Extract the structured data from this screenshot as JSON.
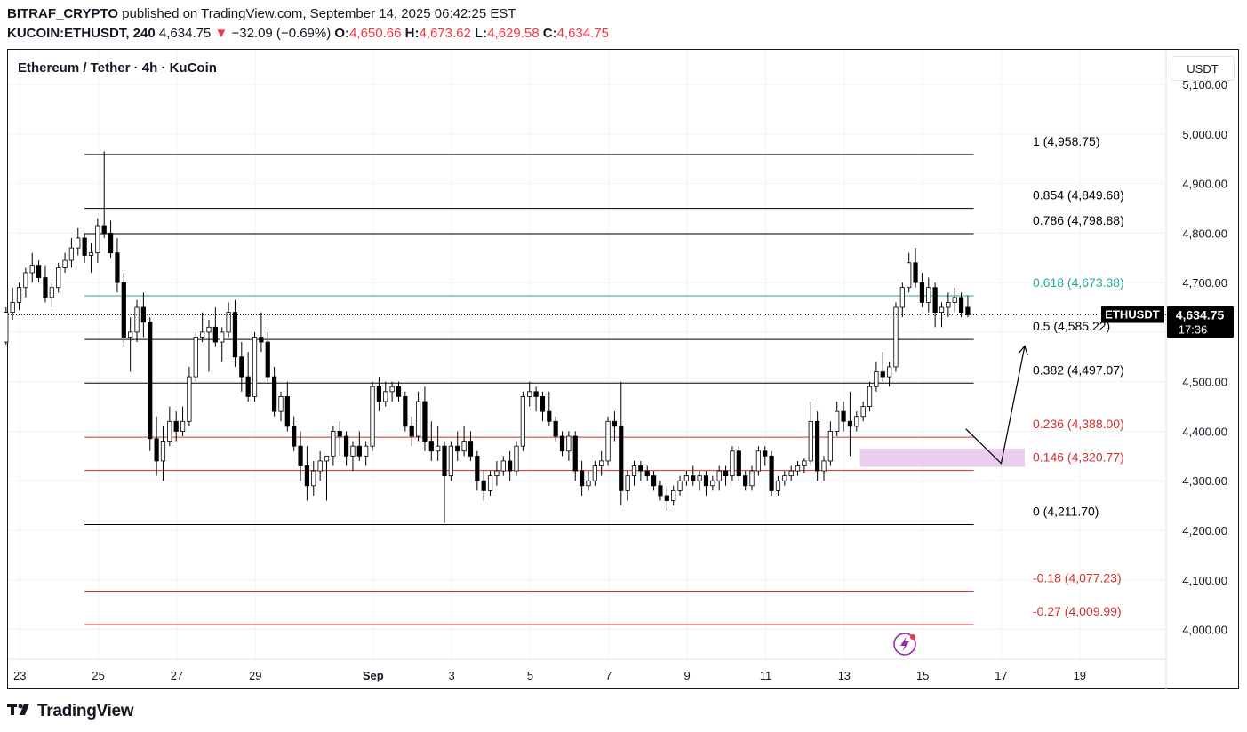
{
  "header": {
    "author": "BITRAF_CRYPTO",
    "published_text": "published on TradingView.com, September 14, 2025 06:42:25 EST",
    "symbol": "KUCOIN:ETHUSDT, 240",
    "last": "4,634.75",
    "change_arrow": "▼",
    "change": "−32.09 (−0.69%)",
    "o_label": "O:",
    "o": "4,650.66",
    "h_label": "H:",
    "h": "4,673.62",
    "l_label": "L:",
    "l": "4,629.58",
    "c_label": "C:",
    "c": "4,634.75"
  },
  "chart_title": "Ethereum / Tether · 4h · KuCoin",
  "currency_button": "USDT",
  "price_tag": {
    "symbol": "ETHUSDT",
    "price": "4,634.75",
    "countdown": "17:36"
  },
  "footer": {
    "brand": "TradingView"
  },
  "colors": {
    "up": "#ffffff",
    "down": "#000000",
    "fib_black": "#000000",
    "fib_red": "#d32f2f",
    "fib_teal": "#22ab94",
    "zone": "#e1bee7",
    "axis_text": "#131722"
  },
  "chart_data": {
    "type": "candlestick",
    "ylim": [
      3940,
      5170
    ],
    "y_ticks": [
      "4,000.00",
      "4,100.00",
      "4,200.00",
      "4,300.00",
      "4,400.00",
      "4,500.00",
      "4,600.00",
      "4,700.00",
      "4,800.00",
      "4,900.00",
      "5,000.00",
      "5,100.00"
    ],
    "y_tick_values": [
      4000,
      4100,
      4200,
      4300,
      4400,
      4500,
      4600,
      4700,
      4800,
      4900,
      5000,
      5100
    ],
    "x_ticks": [
      "23",
      "25",
      "27",
      "29",
      "Sep",
      "3",
      "5",
      "7",
      "9",
      "11",
      "13",
      "15",
      "17",
      "19"
    ],
    "x_tick_days": [
      -9,
      -7,
      -5,
      -3,
      0,
      2,
      4,
      6,
      8,
      10,
      12,
      14,
      16,
      18
    ],
    "x_range_days": [
      -9.3,
      20.2
    ],
    "fib_levels": [
      {
        "ratio": "1",
        "value": 4958.75,
        "label": "4,958.75",
        "color": "#000000"
      },
      {
        "ratio": "0.854",
        "value": 4849.68,
        "label": "4,849.68",
        "color": "#000000"
      },
      {
        "ratio": "0.786",
        "value": 4798.88,
        "label": "4,798.88",
        "color": "#000000"
      },
      {
        "ratio": "0.618",
        "value": 4673.38,
        "label": "4,673.38",
        "color": "#22ab94"
      },
      {
        "ratio": "0.5",
        "value": 4585.22,
        "label": "4,585.22",
        "color": "#000000"
      },
      {
        "ratio": "0.382",
        "value": 4497.07,
        "label": "4,497.07",
        "color": "#000000"
      },
      {
        "ratio": "0.236",
        "value": 4388.0,
        "label": "4,388.00",
        "color": "#d32f2f"
      },
      {
        "ratio": "0.146",
        "value": 4320.77,
        "label": "4,320.77",
        "color": "#d32f2f"
      },
      {
        "ratio": "0",
        "value": 4211.7,
        "label": "4,211.70",
        "color": "#000000"
      },
      {
        "ratio": "-0.18",
        "value": 4077.23,
        "label": "4,077.23",
        "color": "#d32f2f"
      },
      {
        "ratio": "-0.27",
        "value": 4009.99,
        "label": "4,009.99",
        "color": "#d32f2f"
      }
    ],
    "fib_x_range_days": [
      -7.35,
      15.3
    ],
    "zone": {
      "x0": 12.4,
      "x1": 16.6,
      "y0": 4328,
      "y1": 4365
    },
    "projection": [
      {
        "x": 15.1,
        "y": 4405
      },
      {
        "x": 16.0,
        "y": 4335
      },
      {
        "x": 16.6,
        "y": 4572
      }
    ],
    "current_price": 4634.75,
    "candles_4h": [
      {
        "o": 4580,
        "h": 4650,
        "l": 4575,
        "c": 4640
      },
      {
        "o": 4640,
        "h": 4690,
        "l": 4625,
        "c": 4660
      },
      {
        "o": 4660,
        "h": 4700,
        "l": 4645,
        "c": 4690
      },
      {
        "o": 4690,
        "h": 4730,
        "l": 4670,
        "c": 4720
      },
      {
        "o": 4720,
        "h": 4760,
        "l": 4700,
        "c": 4735
      },
      {
        "o": 4735,
        "h": 4745,
        "l": 4700,
        "c": 4710
      },
      {
        "o": 4710,
        "h": 4735,
        "l": 4660,
        "c": 4670
      },
      {
        "o": 4670,
        "h": 4700,
        "l": 4650,
        "c": 4690
      },
      {
        "o": 4690,
        "h": 4740,
        "l": 4680,
        "c": 4730
      },
      {
        "o": 4730,
        "h": 4760,
        "l": 4720,
        "c": 4745
      },
      {
        "o": 4745,
        "h": 4790,
        "l": 4730,
        "c": 4770
      },
      {
        "o": 4770,
        "h": 4810,
        "l": 4755,
        "c": 4790
      },
      {
        "o": 4790,
        "h": 4800,
        "l": 4740,
        "c": 4755
      },
      {
        "o": 4755,
        "h": 4780,
        "l": 4720,
        "c": 4760
      },
      {
        "o": 4760,
        "h": 4830,
        "l": 4740,
        "c": 4815
      },
      {
        "o": 4815,
        "h": 4965,
        "l": 4790,
        "c": 4800
      },
      {
        "o": 4800,
        "h": 4825,
        "l": 4750,
        "c": 4760
      },
      {
        "o": 4760,
        "h": 4790,
        "l": 4680,
        "c": 4700
      },
      {
        "o": 4700,
        "h": 4720,
        "l": 4570,
        "c": 4590
      },
      {
        "o": 4590,
        "h": 4630,
        "l": 4520,
        "c": 4600
      },
      {
        "o": 4600,
        "h": 4665,
        "l": 4580,
        "c": 4650
      },
      {
        "o": 4650,
        "h": 4680,
        "l": 4590,
        "c": 4620
      },
      {
        "o": 4620,
        "h": 4630,
        "l": 4360,
        "c": 4385
      },
      {
        "o": 4385,
        "h": 4430,
        "l": 4310,
        "c": 4340
      },
      {
        "o": 4340,
        "h": 4410,
        "l": 4300,
        "c": 4380
      },
      {
        "o": 4380,
        "h": 4450,
        "l": 4370,
        "c": 4420
      },
      {
        "o": 4420,
        "h": 4440,
        "l": 4380,
        "c": 4400
      },
      {
        "o": 4400,
        "h": 4450,
        "l": 4390,
        "c": 4420
      },
      {
        "o": 4420,
        "h": 4530,
        "l": 4410,
        "c": 4510
      },
      {
        "o": 4510,
        "h": 4600,
        "l": 4500,
        "c": 4590
      },
      {
        "o": 4590,
        "h": 4640,
        "l": 4580,
        "c": 4600
      },
      {
        "o": 4600,
        "h": 4625,
        "l": 4520,
        "c": 4610
      },
      {
        "o": 4610,
        "h": 4650,
        "l": 4570,
        "c": 4580
      },
      {
        "o": 4580,
        "h": 4610,
        "l": 4540,
        "c": 4600
      },
      {
        "o": 4600,
        "h": 4660,
        "l": 4590,
        "c": 4640
      },
      {
        "o": 4640,
        "h": 4665,
        "l": 4530,
        "c": 4550
      },
      {
        "o": 4550,
        "h": 4580,
        "l": 4480,
        "c": 4510
      },
      {
        "o": 4510,
        "h": 4560,
        "l": 4460,
        "c": 4470
      },
      {
        "o": 4470,
        "h": 4600,
        "l": 4460,
        "c": 4590
      },
      {
        "o": 4590,
        "h": 4640,
        "l": 4560,
        "c": 4580
      },
      {
        "o": 4580,
        "h": 4600,
        "l": 4500,
        "c": 4510
      },
      {
        "o": 4510,
        "h": 4530,
        "l": 4430,
        "c": 4440
      },
      {
        "o": 4440,
        "h": 4480,
        "l": 4420,
        "c": 4470
      },
      {
        "o": 4470,
        "h": 4500,
        "l": 4400,
        "c": 4410
      },
      {
        "o": 4410,
        "h": 4430,
        "l": 4360,
        "c": 4370
      },
      {
        "o": 4370,
        "h": 4400,
        "l": 4300,
        "c": 4330
      },
      {
        "o": 4330,
        "h": 4370,
        "l": 4260,
        "c": 4290
      },
      {
        "o": 4290,
        "h": 4340,
        "l": 4270,
        "c": 4320
      },
      {
        "o": 4320,
        "h": 4360,
        "l": 4300,
        "c": 4340
      },
      {
        "o": 4340,
        "h": 4350,
        "l": 4260,
        "c": 4350
      },
      {
        "o": 4350,
        "h": 4410,
        "l": 4330,
        "c": 4400
      },
      {
        "o": 4400,
        "h": 4420,
        "l": 4350,
        "c": 4390
      },
      {
        "o": 4390,
        "h": 4400,
        "l": 4330,
        "c": 4350
      },
      {
        "o": 4350,
        "h": 4380,
        "l": 4320,
        "c": 4370
      },
      {
        "o": 4370,
        "h": 4400,
        "l": 4340,
        "c": 4350
      },
      {
        "o": 4350,
        "h": 4380,
        "l": 4330,
        "c": 4370
      },
      {
        "o": 4370,
        "h": 4500,
        "l": 4360,
        "c": 4490
      },
      {
        "o": 4490,
        "h": 4510,
        "l": 4440,
        "c": 4460
      },
      {
        "o": 4460,
        "h": 4500,
        "l": 4450,
        "c": 4480
      },
      {
        "o": 4480,
        "h": 4500,
        "l": 4460,
        "c": 4490
      },
      {
        "o": 4490,
        "h": 4500,
        "l": 4460,
        "c": 4470
      },
      {
        "o": 4470,
        "h": 4480,
        "l": 4400,
        "c": 4410
      },
      {
        "o": 4410,
        "h": 4430,
        "l": 4370,
        "c": 4390
      },
      {
        "o": 4390,
        "h": 4480,
        "l": 4380,
        "c": 4460
      },
      {
        "o": 4460,
        "h": 4490,
        "l": 4360,
        "c": 4380
      },
      {
        "o": 4380,
        "h": 4420,
        "l": 4340,
        "c": 4360
      },
      {
        "o": 4360,
        "h": 4410,
        "l": 4340,
        "c": 4370
      },
      {
        "o": 4370,
        "h": 4380,
        "l": 4215,
        "c": 4310
      },
      {
        "o": 4310,
        "h": 4380,
        "l": 4300,
        "c": 4370
      },
      {
        "o": 4370,
        "h": 4400,
        "l": 4340,
        "c": 4360
      },
      {
        "o": 4360,
        "h": 4410,
        "l": 4350,
        "c": 4380
      },
      {
        "o": 4380,
        "h": 4400,
        "l": 4340,
        "c": 4350
      },
      {
        "o": 4350,
        "h": 4360,
        "l": 4280,
        "c": 4300
      },
      {
        "o": 4300,
        "h": 4320,
        "l": 4260,
        "c": 4280
      },
      {
        "o": 4280,
        "h": 4320,
        "l": 4270,
        "c": 4310
      },
      {
        "o": 4310,
        "h": 4340,
        "l": 4290,
        "c": 4320
      },
      {
        "o": 4320,
        "h": 4350,
        "l": 4310,
        "c": 4340
      },
      {
        "o": 4340,
        "h": 4360,
        "l": 4300,
        "c": 4320
      },
      {
        "o": 4320,
        "h": 4380,
        "l": 4310,
        "c": 4370
      },
      {
        "o": 4370,
        "h": 4480,
        "l": 4360,
        "c": 4470
      },
      {
        "o": 4470,
        "h": 4500,
        "l": 4450,
        "c": 4480
      },
      {
        "o": 4480,
        "h": 4490,
        "l": 4440,
        "c": 4470
      },
      {
        "o": 4470,
        "h": 4480,
        "l": 4420,
        "c": 4440
      },
      {
        "o": 4440,
        "h": 4480,
        "l": 4410,
        "c": 4420
      },
      {
        "o": 4420,
        "h": 4430,
        "l": 4380,
        "c": 4390
      },
      {
        "o": 4390,
        "h": 4400,
        "l": 4350,
        "c": 4360
      },
      {
        "o": 4360,
        "h": 4400,
        "l": 4340,
        "c": 4390
      },
      {
        "o": 4390,
        "h": 4400,
        "l": 4300,
        "c": 4320
      },
      {
        "o": 4320,
        "h": 4340,
        "l": 4270,
        "c": 4290
      },
      {
        "o": 4290,
        "h": 4320,
        "l": 4280,
        "c": 4300
      },
      {
        "o": 4300,
        "h": 4340,
        "l": 4290,
        "c": 4330
      },
      {
        "o": 4330,
        "h": 4360,
        "l": 4310,
        "c": 4340
      },
      {
        "o": 4340,
        "h": 4430,
        "l": 4330,
        "c": 4420
      },
      {
        "o": 4420,
        "h": 4440,
        "l": 4380,
        "c": 4410
      },
      {
        "o": 4410,
        "h": 4500,
        "l": 4250,
        "c": 4280
      },
      {
        "o": 4280,
        "h": 4320,
        "l": 4260,
        "c": 4310
      },
      {
        "o": 4310,
        "h": 4340,
        "l": 4290,
        "c": 4330
      },
      {
        "o": 4330,
        "h": 4340,
        "l": 4300,
        "c": 4320
      },
      {
        "o": 4320,
        "h": 4330,
        "l": 4300,
        "c": 4310
      },
      {
        "o": 4310,
        "h": 4320,
        "l": 4280,
        "c": 4290
      },
      {
        "o": 4290,
        "h": 4300,
        "l": 4260,
        "c": 4270
      },
      {
        "o": 4270,
        "h": 4290,
        "l": 4240,
        "c": 4260
      },
      {
        "o": 4260,
        "h": 4290,
        "l": 4250,
        "c": 4280
      },
      {
        "o": 4280,
        "h": 4310,
        "l": 4270,
        "c": 4300
      },
      {
        "o": 4300,
        "h": 4320,
        "l": 4290,
        "c": 4310
      },
      {
        "o": 4310,
        "h": 4330,
        "l": 4290,
        "c": 4300
      },
      {
        "o": 4300,
        "h": 4320,
        "l": 4280,
        "c": 4310
      },
      {
        "o": 4310,
        "h": 4320,
        "l": 4270,
        "c": 4290
      },
      {
        "o": 4290,
        "h": 4310,
        "l": 4280,
        "c": 4300
      },
      {
        "o": 4300,
        "h": 4330,
        "l": 4280,
        "c": 4320
      },
      {
        "o": 4320,
        "h": 4330,
        "l": 4290,
        "c": 4310
      },
      {
        "o": 4310,
        "h": 4370,
        "l": 4300,
        "c": 4360
      },
      {
        "o": 4360,
        "h": 4370,
        "l": 4300,
        "c": 4310
      },
      {
        "o": 4310,
        "h": 4320,
        "l": 4280,
        "c": 4290
      },
      {
        "o": 4290,
        "h": 4330,
        "l": 4280,
        "c": 4320
      },
      {
        "o": 4320,
        "h": 4370,
        "l": 4310,
        "c": 4360
      },
      {
        "o": 4360,
        "h": 4370,
        "l": 4330,
        "c": 4350
      },
      {
        "o": 4350,
        "h": 4360,
        "l": 4270,
        "c": 4280
      },
      {
        "o": 4280,
        "h": 4310,
        "l": 4270,
        "c": 4300
      },
      {
        "o": 4300,
        "h": 4320,
        "l": 4290,
        "c": 4310
      },
      {
        "o": 4310,
        "h": 4330,
        "l": 4300,
        "c": 4320
      },
      {
        "o": 4320,
        "h": 4340,
        "l": 4310,
        "c": 4330
      },
      {
        "o": 4330,
        "h": 4345,
        "l": 4315,
        "c": 4340
      },
      {
        "o": 4340,
        "h": 4460,
        "l": 4330,
        "c": 4420
      },
      {
        "o": 4420,
        "h": 4440,
        "l": 4300,
        "c": 4320
      },
      {
        "o": 4320,
        "h": 4350,
        "l": 4300,
        "c": 4340
      },
      {
        "o": 4340,
        "h": 4420,
        "l": 4330,
        "c": 4400
      },
      {
        "o": 4400,
        "h": 4460,
        "l": 4390,
        "c": 4440
      },
      {
        "o": 4440,
        "h": 4460,
        "l": 4400,
        "c": 4420
      },
      {
        "o": 4420,
        "h": 4480,
        "l": 4350,
        "c": 4410
      },
      {
        "o": 4410,
        "h": 4440,
        "l": 4400,
        "c": 4430
      },
      {
        "o": 4430,
        "h": 4460,
        "l": 4420,
        "c": 4450
      },
      {
        "o": 4450,
        "h": 4500,
        "l": 4440,
        "c": 4490
      },
      {
        "o": 4490,
        "h": 4540,
        "l": 4480,
        "c": 4520
      },
      {
        "o": 4520,
        "h": 4560,
        "l": 4500,
        "c": 4510
      },
      {
        "o": 4510,
        "h": 4540,
        "l": 4490,
        "c": 4530
      },
      {
        "o": 4530,
        "h": 4660,
        "l": 4520,
        "c": 4650
      },
      {
        "o": 4650,
        "h": 4700,
        "l": 4630,
        "c": 4690
      },
      {
        "o": 4690,
        "h": 4760,
        "l": 4680,
        "c": 4740
      },
      {
        "o": 4740,
        "h": 4770,
        "l": 4690,
        "c": 4700
      },
      {
        "o": 4700,
        "h": 4720,
        "l": 4650,
        "c": 4660
      },
      {
        "o": 4660,
        "h": 4710,
        "l": 4640,
        "c": 4690
      },
      {
        "o": 4690,
        "h": 4700,
        "l": 4610,
        "c": 4640
      },
      {
        "o": 4640,
        "h": 4660,
        "l": 4610,
        "c": 4650
      },
      {
        "o": 4650,
        "h": 4680,
        "l": 4630,
        "c": 4660
      },
      {
        "o": 4660,
        "h": 4690,
        "l": 4640,
        "c": 4670
      },
      {
        "o": 4670,
        "h": 4680,
        "l": 4630,
        "c": 4640
      },
      {
        "o": 4650,
        "h": 4674,
        "l": 4630,
        "c": 4634.75
      }
    ]
  }
}
